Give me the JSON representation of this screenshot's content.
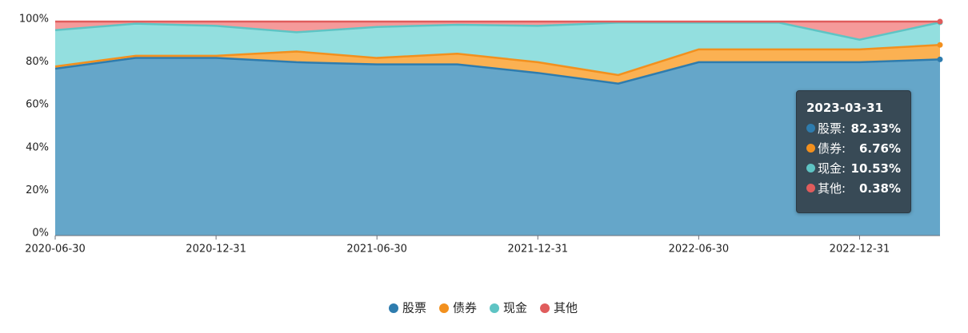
{
  "chart_data": {
    "type": "stacked-area",
    "categories": [
      "2020-06-30",
      null,
      "2020-12-31",
      null,
      "2021-06-30",
      null,
      "2021-12-31",
      null,
      "2022-06-30",
      null,
      "2022-12-31",
      "2023-03-31"
    ],
    "series": [
      {
        "name": "股票",
        "color": "#2e7cae",
        "fill": "#65a6c9",
        "values": [
          78,
          83,
          83,
          81,
          80,
          80,
          76,
          71,
          81,
          81,
          81,
          82.33
        ],
        "value_labels": [
          null,
          null,
          null,
          null,
          null,
          null,
          null,
          null,
          null,
          null,
          null,
          "82.33%"
        ]
      },
      {
        "name": "债券",
        "color": "#f2901e",
        "fill": "#fbb152",
        "values": [
          1,
          1,
          1,
          5,
          3,
          5,
          5,
          4,
          6,
          6,
          6,
          6.76
        ],
        "value_labels": [
          null,
          null,
          null,
          null,
          null,
          null,
          null,
          null,
          null,
          null,
          null,
          "6.76%"
        ]
      },
      {
        "name": "现金",
        "color": "#5ec4c4",
        "fill": "#93dfdf",
        "values": [
          17,
          15,
          14,
          9,
          14.5,
          13.5,
          17,
          24.5,
          12.5,
          12.5,
          4.5,
          10.53
        ],
        "value_labels": [
          null,
          null,
          null,
          null,
          null,
          null,
          null,
          null,
          null,
          null,
          null,
          "10.53%"
        ]
      },
      {
        "name": "其他",
        "color": "#e05c5c",
        "fill": "#f59a9a",
        "values": [
          4,
          1,
          2,
          5,
          2.5,
          1.5,
          2,
          0.5,
          0.5,
          0.5,
          8.5,
          0.38
        ],
        "value_labels": [
          null,
          null,
          null,
          null,
          null,
          null,
          null,
          null,
          null,
          null,
          null,
          "0.38%"
        ]
      }
    ],
    "ylim": [
      0,
      100
    ],
    "yticks": [
      {
        "value": 0,
        "label": "0%"
      },
      {
        "value": 20,
        "label": "20%"
      },
      {
        "value": 40,
        "label": "40%"
      },
      {
        "value": 60,
        "label": "60%"
      },
      {
        "value": 80,
        "label": "80%"
      },
      {
        "value": 100,
        "label": "100%"
      }
    ],
    "grid": true,
    "legend": "bottom",
    "tooltip_index": 11
  }
}
